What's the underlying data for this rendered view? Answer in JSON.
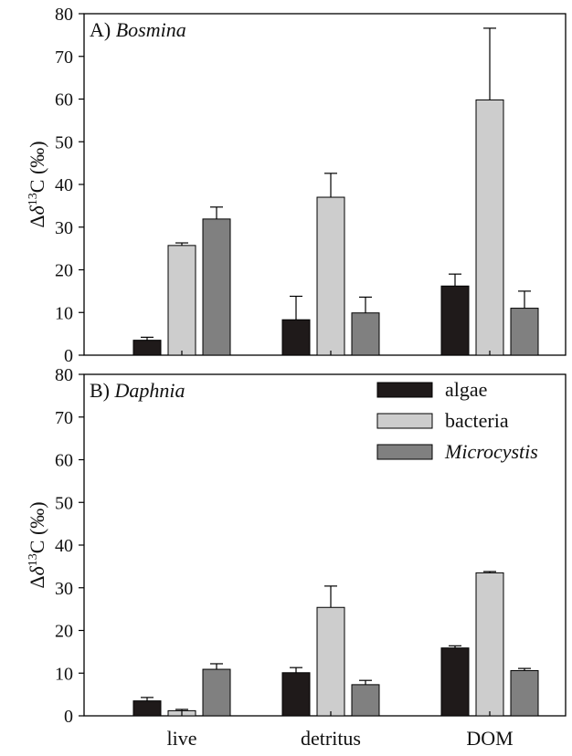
{
  "chart_data": [
    {
      "type": "bar",
      "title_label": "A)",
      "title_taxon": "Bosmina",
      "ylabel_prefix": "Δ",
      "ylabel_delta": "δ",
      "ylabel_super": "13",
      "ylabel_suffix": "C (‰)",
      "ylim": [
        0,
        80
      ],
      "yticks": [
        "0",
        "10",
        "20",
        "30",
        "40",
        "50",
        "60",
        "70",
        "80"
      ],
      "categories": [
        "live",
        "detritus",
        "DOM"
      ],
      "series": [
        {
          "name": "algae",
          "color": "#1f1a1a",
          "values": [
            3.5,
            8.3,
            16.2
          ],
          "errors": [
            0.7,
            5.5,
            2.8
          ]
        },
        {
          "name": "bacteria",
          "color": "#cdcdcd",
          "values": [
            25.7,
            37.0,
            59.8
          ],
          "errors": [
            0.6,
            5.6,
            16.8
          ]
        },
        {
          "name": "Microcystis",
          "color": "#808080",
          "values": [
            31.9,
            9.9,
            11.0
          ],
          "errors": [
            2.8,
            3.7,
            4.0
          ]
        }
      ]
    },
    {
      "type": "bar",
      "title_label": "B)",
      "title_taxon": "Daphnia",
      "ylabel_prefix": "Δ",
      "ylabel_delta": "δ",
      "ylabel_super": "13",
      "ylabel_suffix": "C (‰)",
      "ylim": [
        0,
        80
      ],
      "yticks": [
        "0",
        "10",
        "20",
        "30",
        "40",
        "50",
        "60",
        "70",
        "80"
      ],
      "categories": [
        "live",
        "detritus",
        "DOM"
      ],
      "legend": {
        "position": "top-right",
        "entries": [
          "algae",
          "bacteria",
          "Microcystis"
        ]
      },
      "series": [
        {
          "name": "algae",
          "color": "#1f1a1a",
          "values": [
            3.5,
            10.1,
            15.9
          ],
          "errors": [
            0.8,
            1.2,
            0.5
          ]
        },
        {
          "name": "bacteria",
          "color": "#cdcdcd",
          "values": [
            1.2,
            25.4,
            33.5
          ],
          "errors": [
            0.3,
            5.0,
            0.3
          ]
        },
        {
          "name": "Microcystis",
          "color": "#808080",
          "values": [
            10.9,
            7.3,
            10.6
          ],
          "errors": [
            1.3,
            1.0,
            0.5
          ]
        }
      ]
    }
  ]
}
